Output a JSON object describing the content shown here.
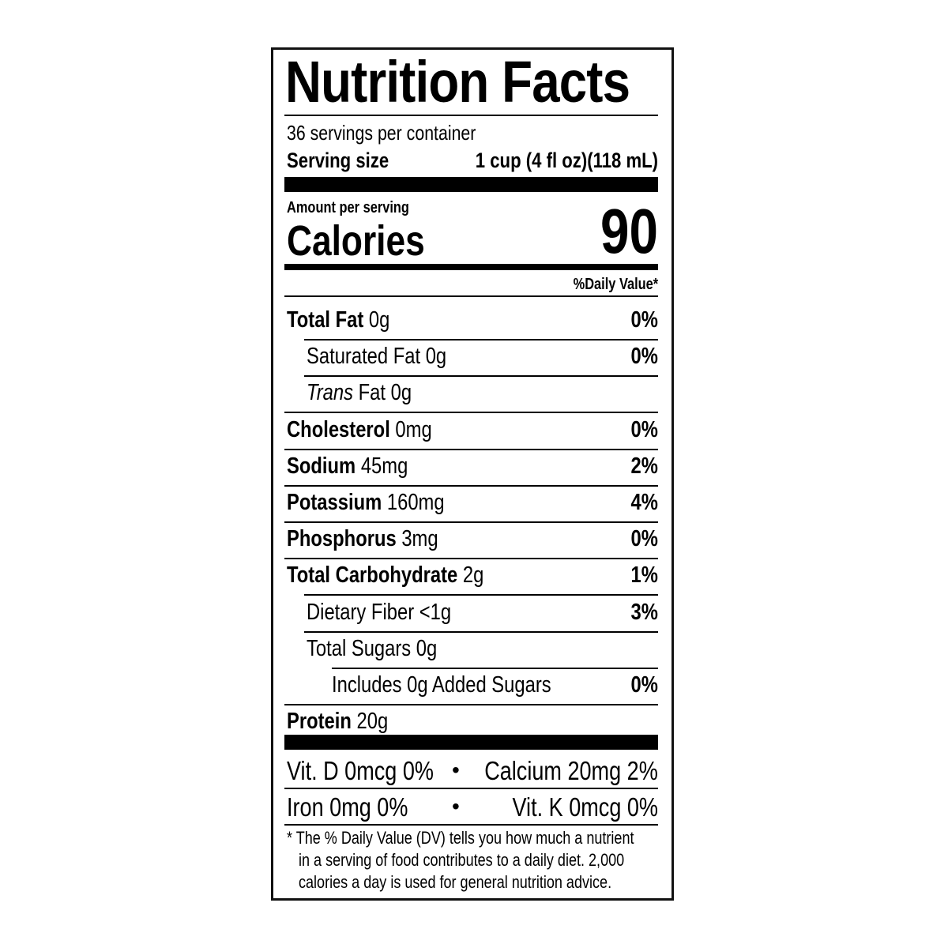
{
  "title": "Nutrition Facts",
  "servings_per_container": "36 servings per container",
  "serving_size_label": "Serving size",
  "serving_size_value": "1 cup (4 fl oz)(118 mL)",
  "amount_per_serving": "Amount per serving",
  "calories_label": "Calories",
  "calories_value": "90",
  "daily_value_header": "%Daily Value*",
  "nutrients": [
    {
      "name": "Total Fat",
      "amount": "0g",
      "dv": "0%",
      "bold": true,
      "indent": 0
    },
    {
      "name": "Saturated Fat",
      "amount": "0g",
      "dv": "0%",
      "bold": false,
      "indent": 1
    },
    {
      "name": "Trans",
      "name_suffix": "Fat",
      "amount": "0g",
      "dv": "",
      "bold": false,
      "indent": 1,
      "italic_prefix": true
    },
    {
      "name": "Cholesterol",
      "amount": "0mg",
      "dv": "0%",
      "bold": true,
      "indent": 0
    },
    {
      "name": "Sodium",
      "amount": "45mg",
      "dv": "2%",
      "bold": true,
      "indent": 0
    },
    {
      "name": "Potassium",
      "amount": "160mg",
      "dv": "4%",
      "bold": true,
      "indent": 0
    },
    {
      "name": "Phosphorus",
      "amount": "3mg",
      "dv": "0%",
      "bold": true,
      "indent": 0
    },
    {
      "name": "Total Carbohydrate",
      "amount": "2g",
      "dv": "1%",
      "bold": true,
      "indent": 0
    },
    {
      "name": "Dietary Fiber",
      "amount": "<1g",
      "dv": "3%",
      "bold": false,
      "indent": 1
    },
    {
      "name": "Total Sugars",
      "amount": "0g",
      "dv": "",
      "bold": false,
      "indent": 1
    },
    {
      "name": "Includes 0g Added Sugars",
      "amount": "",
      "dv": "0%",
      "bold": false,
      "indent": 2
    },
    {
      "name": "Protein",
      "amount": "20g",
      "dv": "",
      "bold": true,
      "indent": 0
    }
  ],
  "vitamins": [
    {
      "left": "Vit. D 0mcg 0%",
      "bullet": "•",
      "right": "Calcium 20mg 2%"
    },
    {
      "left": "Iron 0mg 0%",
      "bullet": "•",
      "right": "Vit. K 0mcg 0%"
    }
  ],
  "footnote": [
    "* The % Daily Value (DV) tells you how much a nutrient",
    "in a serving of food contributes to a daily diet. 2,000",
    "calories a day is used for general nutrition advice."
  ]
}
